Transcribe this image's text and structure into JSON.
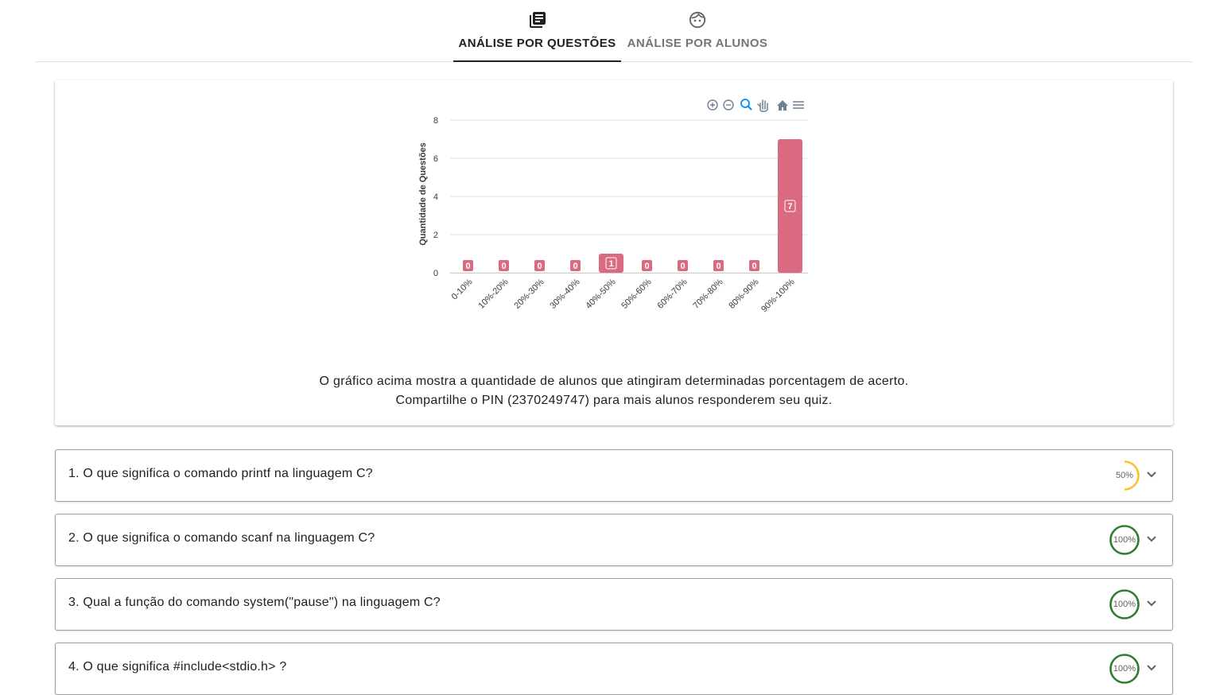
{
  "tabs": [
    {
      "label": "ANÁLISE POR QUESTÕES",
      "icon": "library-books-icon",
      "active": true
    },
    {
      "label": "ANÁLISE POR ALUNOS",
      "icon": "face-icon",
      "active": false
    }
  ],
  "chart_toolbar": [
    "zoom-in-icon",
    "zoom-out-icon",
    "selection-zoom-icon",
    "pan-hand-icon",
    "home-reset-icon",
    "menu-icon"
  ],
  "chart_data": {
    "type": "bar",
    "categories": [
      "0-10%",
      "10%-20%",
      "20%-30%",
      "30%-40%",
      "40%-50%",
      "50%-60%",
      "60%-70%",
      "70%-80%",
      "80%-90%",
      "90%-100%"
    ],
    "values": [
      0,
      0,
      0,
      0,
      1,
      0,
      0,
      0,
      0,
      7
    ],
    "ylabel": "Quantidade de Questões",
    "ylim": [
      0,
      8
    ],
    "yticks": [
      "0",
      "2",
      "4",
      "6",
      "8"
    ],
    "grid": true,
    "bar_color": "#d96a80"
  },
  "caption": {
    "line1": "O gráfico acima mostra a quantidade de alunos que atingiram determinadas porcentagem de acerto.",
    "line2": "Compartilhe o PIN (2370249747) para mais alunos responderem seu quiz."
  },
  "questions": [
    {
      "text": "1. O que significa o comando printf na linguagem C?",
      "percent_label": "50%",
      "percent": 50,
      "color": "#fbc02d"
    },
    {
      "text": "2. O que significa o comando scanf na linguagem C?",
      "percent_label": "100%",
      "percent": 100,
      "color": "#2e7d32"
    },
    {
      "text": "3. Qual a função do comando system(\"pause\") na linguagem C?",
      "percent_label": "100%",
      "percent": 100,
      "color": "#2e7d32"
    },
    {
      "text": "4. O que significa #include<stdio.h> ?",
      "percent_label": "100%",
      "percent": 100,
      "color": "#2e7d32"
    }
  ]
}
